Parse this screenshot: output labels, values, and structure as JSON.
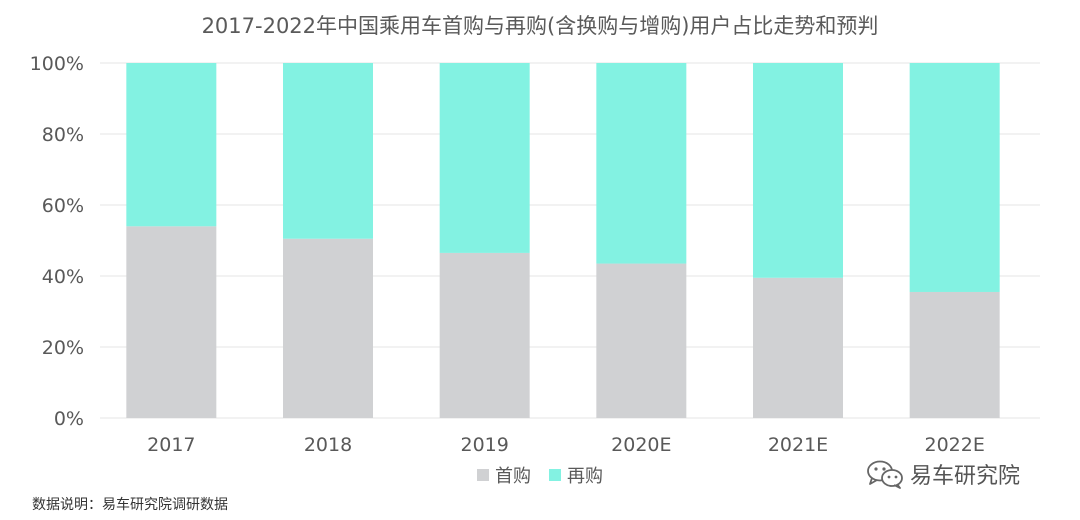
{
  "title": "2017-2022年中国乘用车首购与再购(含换购与增购)用户占比走势和预判",
  "chart_data": {
    "type": "bar",
    "stacked": true,
    "categories": [
      "2017",
      "2018",
      "2019",
      "2020E",
      "2021E",
      "2022E"
    ],
    "series": [
      {
        "name": "首购",
        "values": [
          54,
          50.5,
          46.5,
          43.5,
          39.5,
          35.5
        ],
        "color": "#d0d1d3"
      },
      {
        "name": "再购",
        "values": [
          46,
          49.5,
          53.5,
          56.5,
          60.5,
          64.5
        ],
        "color": "#83f2e2"
      }
    ],
    "ylim": [
      0,
      100
    ],
    "yticks": [
      "0%",
      "20%",
      "40%",
      "60%",
      "80%",
      "100%"
    ],
    "ytick_values": [
      0,
      20,
      40,
      60,
      80,
      100
    ],
    "grid": true,
    "legend": "bottom-center"
  },
  "legend": {
    "first_label": "首购",
    "repeat_label": "再购",
    "first_color": "#d0d1d3",
    "repeat_color": "#83f2e2"
  },
  "footnote": "数据说明：易车研究院调研数据",
  "brand": {
    "name": "易车研究院",
    "icon": "wechat-icon"
  }
}
